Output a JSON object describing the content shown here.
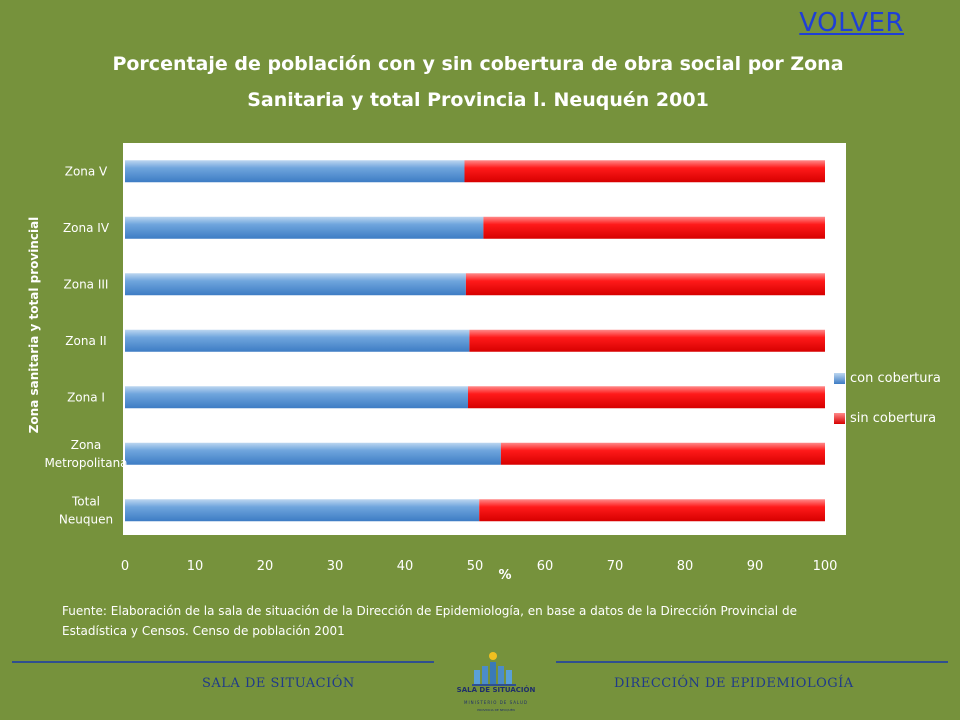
{
  "nav": {
    "volver_label": "VOLVER"
  },
  "chart_data": {
    "type": "bar",
    "orientation": "horizontal",
    "stacked": true,
    "title": "Porcentaje de población con y sin cobertura de obra social por Zona Sanitaria  y total  Provincia l. Neuquén 2001",
    "title_lines": [
      "Porcentaje de población con y sin cobertura de obra social por Zona",
      "Sanitaria  y total  Provincia l. Neuquén 2001"
    ],
    "xlabel": "%",
    "ylabel": "Zona sanitaria  y total provincial",
    "categories": [
      "Zona V",
      "Zona IV",
      "Zona III",
      "Zona II",
      "Zona I",
      "Zona Metropolitana",
      "Total Neuquen"
    ],
    "category_lines": [
      [
        "Zona V"
      ],
      [
        "Zona IV"
      ],
      [
        "Zona III"
      ],
      [
        "Zona II"
      ],
      [
        "Zona I"
      ],
      [
        "Zona",
        "Metropolitana"
      ],
      [
        "Total",
        "Neuquen"
      ]
    ],
    "series": [
      {
        "name": "con cobertura",
        "color": "#5b9bd5",
        "values": [
          48.5,
          51.2,
          48.7,
          49.2,
          49.0,
          53.7,
          50.6
        ]
      },
      {
        "name": "sin cobertura",
        "color": "#ff0000",
        "values": [
          51.5,
          48.8,
          51.3,
          50.8,
          51.0,
          46.3,
          49.4
        ]
      }
    ],
    "xlim": [
      0,
      100
    ],
    "xticks": [
      0,
      10,
      20,
      30,
      40,
      50,
      60,
      70,
      80,
      90,
      100
    ],
    "grid": false,
    "legend_position": "right"
  },
  "source_text": "Fuente: Elaboración de la sala de situación de la Dirección de Epidemiología, en base a datos de la Dirección Provincial de Estadística y Censos. Censo de población 2001",
  "footer": {
    "left": "SALA DE SITUACIÓN",
    "right": "DIRECCIÓN DE EPIDEMIOLOGÍA",
    "logo_title": "SALA DE SITUACIÓN",
    "logo_subtitle": "MINISTERIO DE SALUD",
    "logo_subtitle2": "PROVINCIA DE NEUQUÉN"
  }
}
